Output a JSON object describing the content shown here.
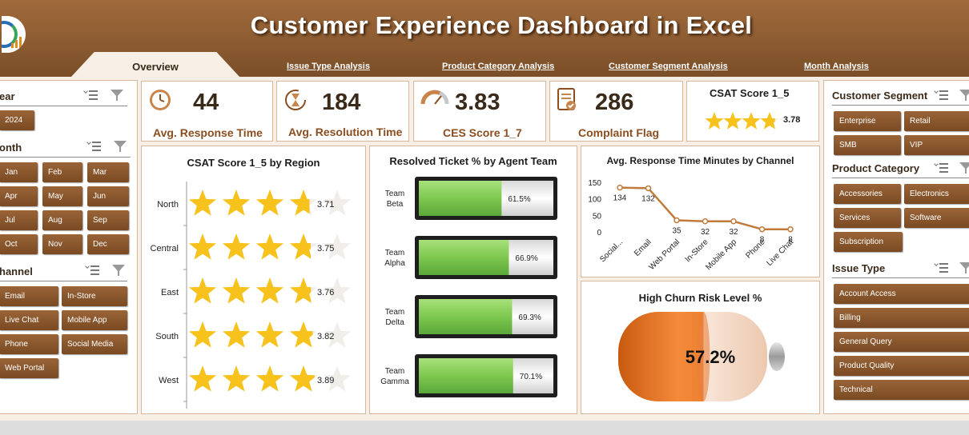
{
  "header": {
    "title": "Customer Experience Dashboard in Excel",
    "tabs": [
      {
        "label": "Overview",
        "active": true
      },
      {
        "label": "Issue Type Analysis"
      },
      {
        "label": "Product Category Analysis"
      },
      {
        "label": "Customer Segment Analysis"
      },
      {
        "label": "Month Analysis"
      }
    ]
  },
  "left_slicers": {
    "year": {
      "label": "ear",
      "items": [
        "2024"
      ]
    },
    "month": {
      "label": "onth",
      "items": [
        "Jan",
        "Feb",
        "Mar",
        "Apr",
        "May",
        "Jun",
        "Jul",
        "Aug",
        "Sep",
        "Oct",
        "Nov",
        "Dec"
      ]
    },
    "channel": {
      "label": "hannel",
      "items": [
        "Email",
        "In-Store",
        "Live Chat",
        "Mobile App",
        "Phone",
        "Social Media",
        "Web Portal"
      ]
    }
  },
  "kpis": [
    {
      "value": "44",
      "label": "Avg. Response Time",
      "icon": "clock-icon"
    },
    {
      "value": "184",
      "label": "Avg. Resolution Time",
      "icon": "hourglass-icon"
    },
    {
      "value": "3.83",
      "label": "CES Score 1_7",
      "icon": "gauge-icon"
    },
    {
      "value": "286",
      "label": "Complaint Flag",
      "icon": "clipboard-check-icon"
    }
  ],
  "csat_card": {
    "title": "CSAT Score 1_5",
    "value": "3.78",
    "rating": 3.78
  },
  "right_slicers": {
    "segment": {
      "label": "Customer Segment",
      "items": [
        "Enterprise",
        "Retail",
        "SMB",
        "VIP"
      ]
    },
    "category": {
      "label": "Product Category",
      "items": [
        "Accessories",
        "Electronics",
        "Services",
        "Software",
        "Subscription"
      ]
    },
    "issue": {
      "label": "Issue Type",
      "items": [
        "Account Access",
        "Billing",
        "General Query",
        "Product Quality",
        "Technical"
      ]
    }
  },
  "charts": {
    "region": {
      "title": "CSAT Score 1_5 by Region"
    },
    "agent": {
      "title": "Resolved Ticket % by Agent Team"
    },
    "channel": {
      "title": "Avg. Response Time Minutes by Channel"
    },
    "churn": {
      "title": "High Churn Risk Level %",
      "value_label": "57.2%"
    }
  },
  "chart_data": [
    {
      "type": "bar",
      "title": "CSAT Score 1_5 by Region",
      "categories": [
        "North",
        "Central",
        "East",
        "South",
        "West"
      ],
      "values": [
        3.71,
        3.75,
        3.76,
        3.82,
        3.89
      ],
      "xlim": [
        0,
        5
      ],
      "style": "star-rating"
    },
    {
      "type": "bar",
      "title": "Resolved Ticket % by Agent Team",
      "categories": [
        "Team Beta",
        "Team Alpha",
        "Team Delta",
        "Team Gamma"
      ],
      "values": [
        61.5,
        66.9,
        69.3,
        70.1
      ],
      "value_labels": [
        "61.5%",
        "66.9%",
        "69.3%",
        "70.1%"
      ],
      "xlim": [
        0,
        100
      ],
      "style": "battery-progress"
    },
    {
      "type": "line",
      "title": "Avg. Response Time Minutes by Channel",
      "categories": [
        "Social...",
        "Email",
        "Web Portal",
        "In-Store",
        "Mobile App",
        "Phone",
        "Live Chat"
      ],
      "values": [
        134,
        132,
        35,
        32,
        32,
        8,
        8
      ],
      "ylim": [
        0,
        150
      ],
      "yticks": [
        0,
        50,
        100,
        150
      ],
      "color": "#c07a3c"
    },
    {
      "type": "bar",
      "title": "High Churn Risk Level %",
      "values": [
        57.2
      ],
      "value_labels": [
        "57.2%"
      ],
      "ylim": [
        0,
        100
      ],
      "style": "battery-fill",
      "color": "#f07a1e"
    }
  ],
  "colors": {
    "header": "#8a5a30",
    "slicer_button": "#7a4a22",
    "accent": "#8a4e20",
    "star": "#f6c21b",
    "bar_fill": "#7ec850",
    "churn_fill": "#f07a1e"
  }
}
